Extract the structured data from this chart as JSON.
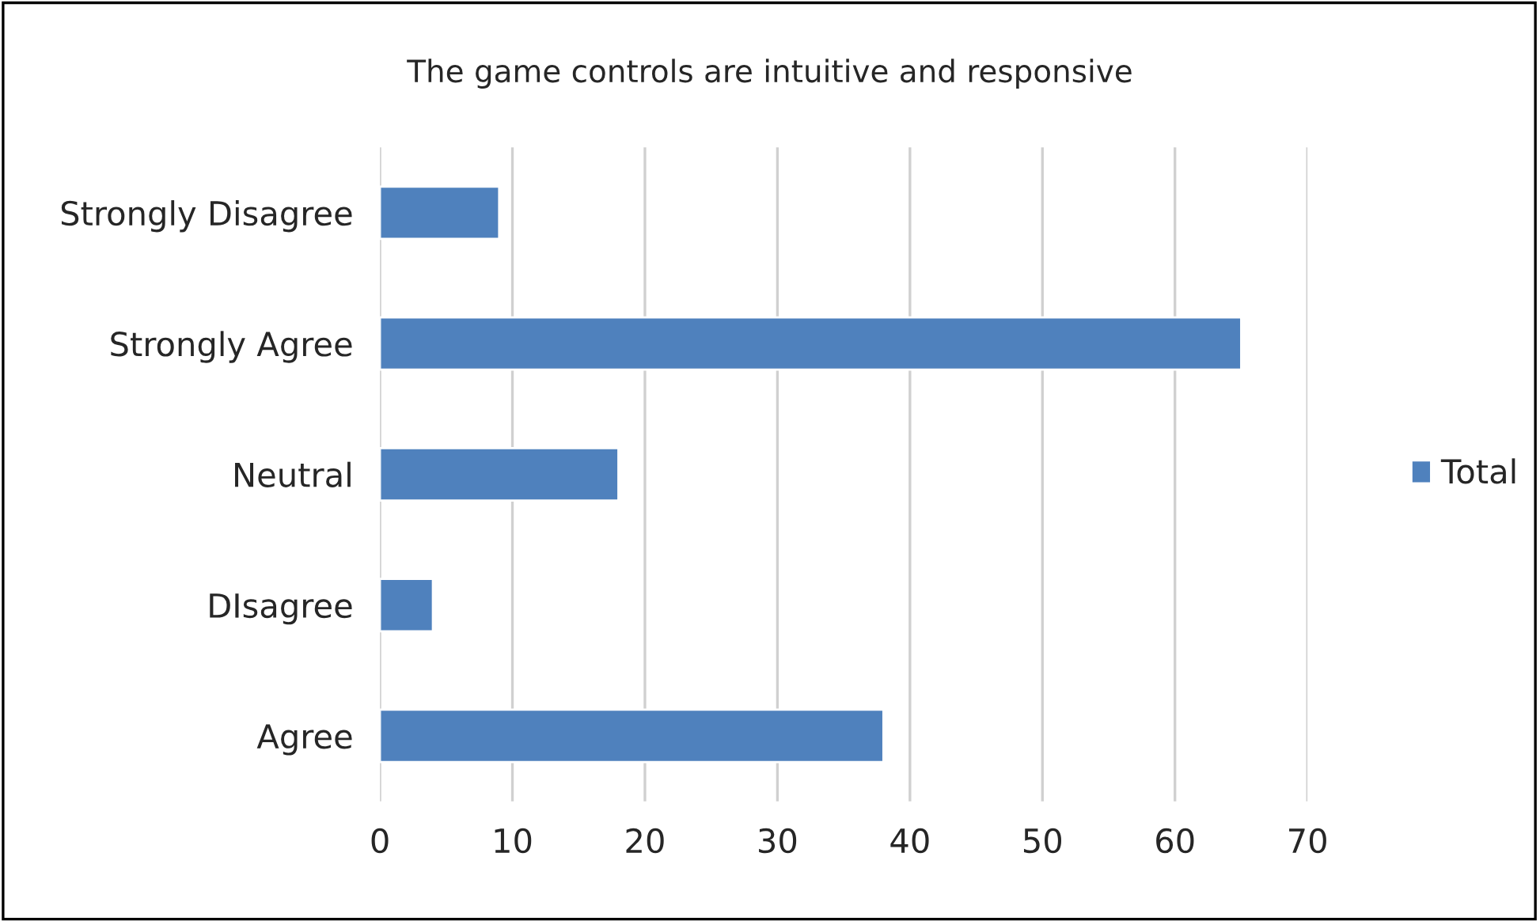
{
  "chart_data": {
    "type": "bar",
    "orientation": "horizontal",
    "title": "The game controls are intuitive and responsive",
    "categories": [
      "Strongly Disagree",
      "Strongly Agree",
      "Neutral",
      "DIsagree",
      "Agree"
    ],
    "series": [
      {
        "name": "Total",
        "color": "#4f81bd",
        "values": [
          9,
          65,
          18,
          4,
          38
        ]
      }
    ],
    "xlim": [
      0,
      70
    ],
    "xticks": [
      0,
      10,
      20,
      30,
      40,
      50,
      60,
      70
    ],
    "grid": "x",
    "legend": "right"
  }
}
